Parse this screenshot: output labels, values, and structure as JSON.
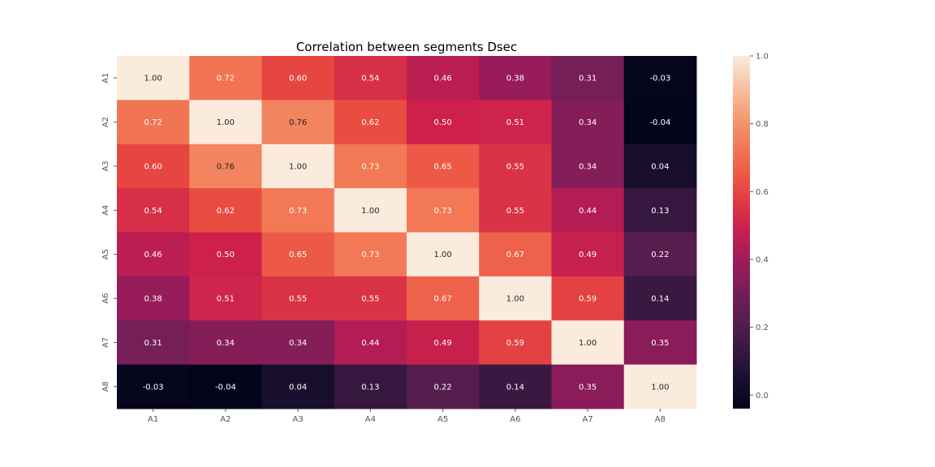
{
  "chart_data": {
    "type": "heatmap",
    "title": "Correlation between segments Dsec",
    "xlabel": "",
    "ylabel": "",
    "x_categories": [
      "A1",
      "A2",
      "A3",
      "A4",
      "A5",
      "A6",
      "A7",
      "A8"
    ],
    "y_categories": [
      "A1",
      "A2",
      "A3",
      "A4",
      "A5",
      "A6",
      "A7",
      "A8"
    ],
    "values": [
      [
        1.0,
        0.72,
        0.6,
        0.54,
        0.46,
        0.38,
        0.31,
        -0.03
      ],
      [
        0.72,
        1.0,
        0.76,
        0.62,
        0.5,
        0.51,
        0.34,
        -0.04
      ],
      [
        0.6,
        0.76,
        1.0,
        0.73,
        0.65,
        0.55,
        0.34,
        0.04
      ],
      [
        0.54,
        0.62,
        0.73,
        1.0,
        0.73,
        0.55,
        0.44,
        0.13
      ],
      [
        0.46,
        0.5,
        0.65,
        0.73,
        1.0,
        0.67,
        0.49,
        0.22
      ],
      [
        0.38,
        0.51,
        0.55,
        0.55,
        0.67,
        1.0,
        0.59,
        0.14
      ],
      [
        0.31,
        0.34,
        0.34,
        0.44,
        0.49,
        0.59,
        1.0,
        0.35
      ],
      [
        -0.03,
        -0.04,
        0.04,
        0.13,
        0.22,
        0.14,
        0.35,
        1.0
      ]
    ],
    "value_format": "0.00",
    "colormap": "rocket",
    "colorbar": {
      "vmin": -0.04,
      "vmax": 1.0,
      "ticks": [
        0.0,
        0.2,
        0.4,
        0.6,
        0.8,
        1.0
      ],
      "tick_labels": [
        "0.0",
        "0.2",
        "0.4",
        "0.6",
        "0.8",
        "1.0"
      ],
      "placement": "right"
    },
    "grid": false
  }
}
